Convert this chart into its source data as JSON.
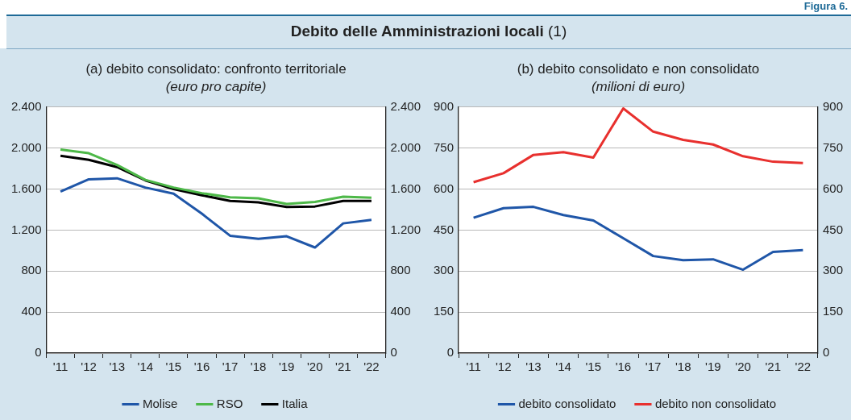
{
  "chart_data": [
    {
      "type": "line",
      "annotations": [
        "Figura 6.",
        "Debito delle Amministrazioni locali (1)"
      ],
      "title": "(a) debito consolidato: confronto territoriale",
      "subtitle": "(euro pro capite)",
      "categories": [
        "'11",
        "'12",
        "'13",
        "'14",
        "'15",
        "'16",
        "'17",
        "'18",
        "'19",
        "'20",
        "'21",
        "'22"
      ],
      "series": [
        {
          "name": "Molise",
          "color": "#1f56a8",
          "values": [
            1575,
            1695,
            1705,
            1615,
            1555,
            1360,
            1145,
            1115,
            1140,
            1030,
            1265,
            1300
          ]
        },
        {
          "name": "RSO",
          "color": "#4db848",
          "values": [
            1985,
            1950,
            1835,
            1690,
            1615,
            1560,
            1520,
            1510,
            1455,
            1475,
            1525,
            1515
          ]
        },
        {
          "name": "Italia",
          "color": "#000000",
          "values": [
            1925,
            1885,
            1815,
            1685,
            1600,
            1540,
            1485,
            1470,
            1425,
            1430,
            1485,
            1485
          ]
        }
      ],
      "ylim": [
        0,
        2400
      ],
      "yticks": [
        {
          "value": 0,
          "label": "0"
        },
        {
          "value": 400,
          "label": "400"
        },
        {
          "value": 800,
          "label": "800"
        },
        {
          "value": 1200,
          "label": "1.200"
        },
        {
          "value": 1600,
          "label": "1.600"
        },
        {
          "value": 2000,
          "label": "2.000"
        },
        {
          "value": 2400,
          "label": "2.400"
        }
      ],
      "y2lim": [
        0,
        2400
      ],
      "y2ticks": [
        {
          "value": 0,
          "label": "0"
        },
        {
          "value": 400,
          "label": "400"
        },
        {
          "value": 800,
          "label": "800"
        },
        {
          "value": 1200,
          "label": "1.200"
        },
        {
          "value": 1600,
          "label": "1.600"
        },
        {
          "value": 2000,
          "label": "2.000"
        },
        {
          "value": 2400,
          "label": "2.400"
        }
      ],
      "grid": "y",
      "legend": "bottom",
      "marker": "none",
      "line_style": "solid"
    },
    {
      "type": "line",
      "title": "(b) debito consolidato e non consolidato",
      "subtitle": "(milioni di euro)",
      "categories": [
        "'11",
        "'12",
        "'13",
        "'14",
        "'15",
        "'16",
        "'17",
        "'18",
        "'19",
        "'20",
        "'21",
        "'22"
      ],
      "series": [
        {
          "name": "debito consolidato",
          "color": "#1f56a8",
          "values": [
            495,
            530,
            535,
            505,
            485,
            420,
            355,
            340,
            343,
            305,
            370,
            377
          ]
        },
        {
          "name": "debito non consolidato",
          "color": "#e8302e",
          "values": [
            625,
            658,
            725,
            735,
            715,
            895,
            810,
            780,
            763,
            720,
            700,
            695
          ]
        }
      ],
      "ylim": [
        0,
        900
      ],
      "yticks": [
        0,
        150,
        300,
        450,
        600,
        750,
        900
      ],
      "y2lim": [
        0,
        900
      ],
      "y2ticks": [
        0,
        150,
        300,
        450,
        600,
        750,
        900
      ],
      "grid": "y",
      "legend": "bottom",
      "marker": "none",
      "line_style": "solid"
    }
  ]
}
